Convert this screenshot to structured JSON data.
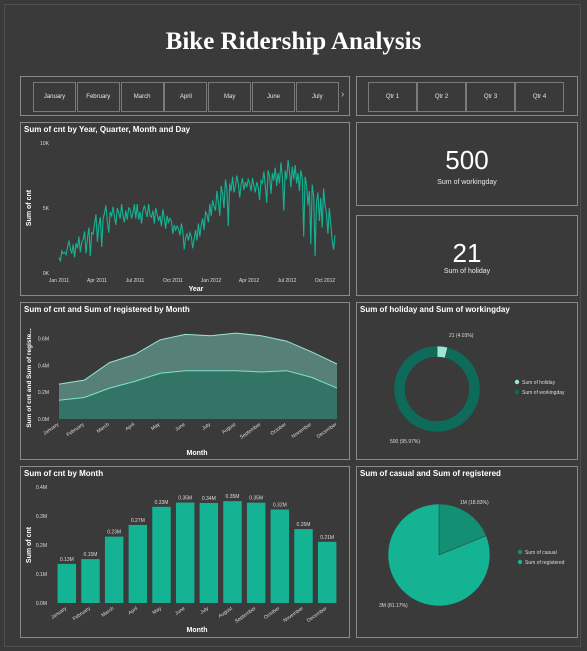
{
  "dashboard_title": "Bike Ridership Analysis",
  "month_slicer": [
    "January",
    "February",
    "March",
    "April",
    "May",
    "June",
    "July"
  ],
  "quarter_slicer": [
    "Qtr 1",
    "Qtr 2",
    "Qtr 3",
    "Qtr 4"
  ],
  "colors": {
    "teal": "#14b394",
    "teal_dark": "#0e6b5a",
    "teal_light": "#9ae6d4",
    "background": "#3a3a3a",
    "border": "#8a8a8a"
  },
  "cards": {
    "workingday": {
      "value": "500",
      "label": "Sum of workingday"
    },
    "holiday": {
      "value": "21",
      "label": "Sum of holiday"
    }
  },
  "chart_data": [
    {
      "id": "daily",
      "type": "line",
      "title": "Sum of cnt by Year, Quarter, Month and Day",
      "xlabel": "Year",
      "ylabel": "Sum of cnt",
      "x_range": [
        "2011-01-01",
        "2012-12-31"
      ],
      "ylim": [
        0,
        10000
      ],
      "y_ticks": [
        {
          "v": 0,
          "label": "0K"
        },
        {
          "v": 5000,
          "label": "5K"
        },
        {
          "v": 10000,
          "label": "10K"
        }
      ],
      "x_ticks": [
        "Jan 2011",
        "Apr 2011",
        "Jul 2011",
        "Oct 2011",
        "Jan 2012",
        "Apr 2012",
        "Jul 2012",
        "Oct 2012"
      ],
      "series": [
        {
          "values": [
            1200,
            900,
            1700,
            1500,
            1600,
            1400,
            2000,
            2500,
            1800,
            1500,
            2200,
            1200,
            2300,
            1900,
            2800,
            1600,
            2400,
            2600,
            3200,
            1500,
            2700,
            3500,
            1300,
            3100,
            3000,
            3800,
            4500,
            2400,
            3600,
            4300,
            2000,
            4200,
            4600,
            5200,
            3900,
            3100,
            4700,
            4400,
            5100,
            4300,
            3700,
            5000,
            4600,
            4200,
            5300,
            4400,
            3900,
            4800,
            4100,
            5000,
            4900,
            4200,
            4600,
            5300,
            4200,
            5300,
            4100,
            4700,
            3800,
            4800,
            5200,
            4700,
            4300,
            5300,
            4400,
            4300,
            4800,
            3800,
            5000,
            4500,
            4000,
            4400,
            3600,
            4900,
            4200,
            3400,
            4400,
            3900,
            4200,
            4000,
            3000,
            3700,
            3300,
            3600,
            3400,
            2900,
            3800,
            3200,
            1800,
            2700,
            3000,
            2500,
            3100,
            2800,
            1900,
            2600,
            3300,
            2500,
            3800,
            2800,
            3700,
            4200,
            3300,
            4700,
            4500,
            3900,
            5300,
            4400,
            5600,
            5100,
            4800,
            6300,
            5500,
            4400,
            6700,
            6100,
            5000,
            7200,
            6400,
            3600,
            6900,
            6300,
            7400,
            6200,
            6700,
            7500,
            6900,
            5800,
            6800,
            7300,
            6400,
            7000,
            6600,
            7200,
            6900,
            6300,
            7300,
            6700,
            6200,
            7000,
            6600,
            5600,
            7100,
            6900,
            7800,
            6700,
            5400,
            7900,
            7400,
            6100,
            7700,
            7100,
            8100,
            6700,
            7700,
            6900,
            8500,
            7300,
            4800,
            7900,
            7200,
            8700,
            7800,
            6600,
            8200,
            7200,
            8300,
            6900,
            7700,
            6300,
            7900,
            7300,
            2800,
            7400,
            6800,
            5200,
            6300,
            2200,
            6800,
            5900,
            1300,
            5400,
            6200,
            4000,
            5800,
            3500,
            6500,
            5200,
            4600,
            3000,
            5000,
            3800,
            2500,
            1800,
            2900
          ]
        }
      ]
    },
    {
      "id": "cnt_registered",
      "type": "area",
      "title": "Sum of cnt and Sum of registered by Month",
      "xlabel": "Month",
      "ylabel": "Sum of cnt and Sum of registe...",
      "categories": [
        "January",
        "February",
        "March",
        "April",
        "May",
        "June",
        "July",
        "August",
        "September",
        "October",
        "November",
        "December"
      ],
      "ylim": [
        0,
        700000
      ],
      "y_ticks": [
        {
          "v": 0,
          "label": "0.0M"
        },
        {
          "v": 200000,
          "label": "0.2M"
        },
        {
          "v": 400000,
          "label": "0.4M"
        },
        {
          "v": 600000,
          "label": "0.6M"
        }
      ],
      "series": [
        {
          "name": "Sum of cnt",
          "values": [
            260000,
            290000,
            420000,
            480000,
            590000,
            630000,
            620000,
            640000,
            620000,
            580000,
            500000,
            410000
          ]
        },
        {
          "name": "Sum of registered",
          "values": [
            140000,
            160000,
            230000,
            280000,
            340000,
            360000,
            360000,
            360000,
            350000,
            360000,
            310000,
            230000
          ]
        }
      ]
    },
    {
      "id": "holiday_workingday",
      "type": "pie",
      "title": "Sum of holiday and Sum of workingday",
      "legend": [
        "Sum of holiday",
        "Sum of workingday"
      ],
      "slices": [
        {
          "value": 21,
          "label": "21 (4.03%)"
        },
        {
          "value": 500,
          "label": "500 (95.97%)"
        }
      ]
    },
    {
      "id": "cnt_month",
      "type": "bar",
      "title": "Sum of cnt by Month",
      "xlabel": "Month",
      "ylabel": "Sum of cnt",
      "categories": [
        "January",
        "February",
        "March",
        "April",
        "May",
        "June",
        "July",
        "August",
        "September",
        "October",
        "November",
        "December"
      ],
      "ylim": [
        0,
        400000
      ],
      "y_ticks": [
        {
          "v": 0,
          "label": "0.0M"
        },
        {
          "v": 100000,
          "label": "0.1M"
        },
        {
          "v": 200000,
          "label": "0.2M"
        },
        {
          "v": 300000,
          "label": "0.3M"
        },
        {
          "v": 400000,
          "label": "0.4M"
        }
      ],
      "values": [
        134933,
        151352,
        228920,
        269094,
        331686,
        346342,
        344948,
        351194,
        345991,
        322352,
        254831,
        211036
      ],
      "value_labels": [
        "0.13M",
        "0.15M",
        "0.23M",
        "0.27M",
        "0.33M",
        "0.35M",
        "0.34M",
        "0.35M",
        "0.35M",
        "0.32M",
        "0.25M",
        "0.21M"
      ]
    },
    {
      "id": "casual_registered",
      "type": "pie",
      "title": "Sum of casual and Sum of registered",
      "legend": [
        "Sum of casual",
        "Sum of registered"
      ],
      "slices": [
        {
          "value": 620017,
          "label": "1M (18.83%)"
        },
        {
          "value": 2672662,
          "label": "3M (81.17%)"
        }
      ]
    }
  ]
}
